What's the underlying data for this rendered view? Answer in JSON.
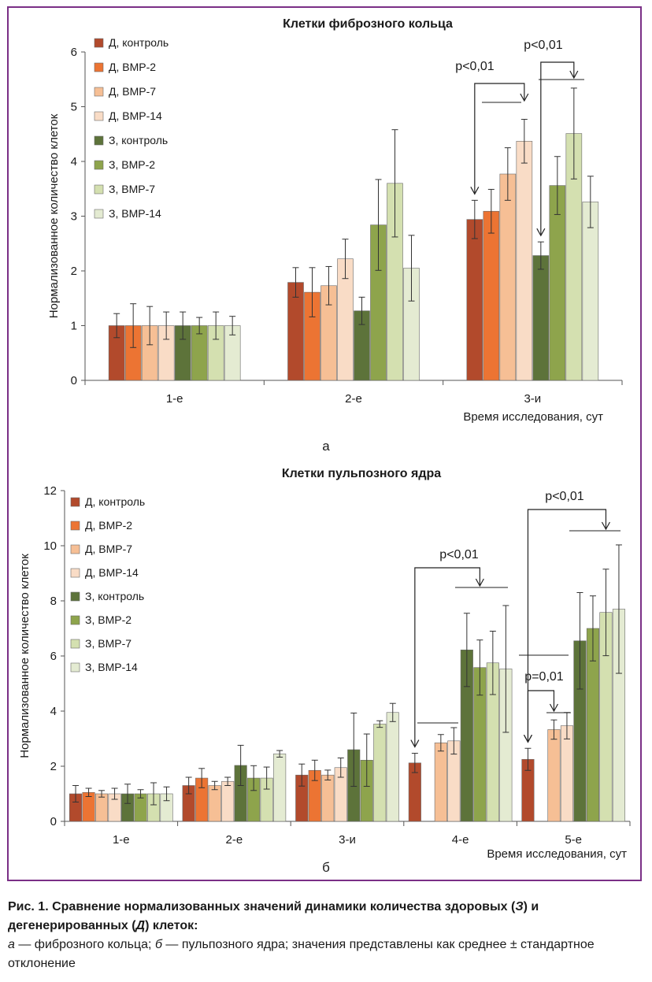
{
  "caption": {
    "title_start": "Рис. 1. Сравнение нормализованных значений динамики количества здоровых (",
    "title_z": "З",
    "title_mid": ") и дегенерированных (",
    "title_d": "Д",
    "title_end": ") клеток:",
    "a_letter": "а",
    "a_text": " — фиброзного кольца; ",
    "b_letter": "б",
    "b_text": " — пульпозного ядра; значения представлены как среднее ± стандартное отклонение"
  },
  "chart_data": [
    {
      "type": "bar",
      "panel": "а",
      "title": "Клетки фиброзного кольца",
      "ylabel": "Нормализованное количество клеток",
      "xlabel": "Время исследования, сут",
      "ylim": [
        0,
        6
      ],
      "yticks": [
        0,
        1,
        2,
        3,
        4,
        5,
        6
      ],
      "legend_position": "top-left",
      "categories": [
        "1-е",
        "2-е",
        "3-и"
      ],
      "series": [
        {
          "name": "Д, контроль",
          "color": "#b24a2c",
          "values": [
            1.0,
            1.79,
            2.94
          ],
          "errors": [
            0.22,
            0.27,
            0.35
          ]
        },
        {
          "name": "Д, BMP-2",
          "color": "#ec7433",
          "values": [
            1.0,
            1.61,
            3.09
          ],
          "errors": [
            0.4,
            0.45,
            0.4
          ]
        },
        {
          "name": "Д, BMP-7",
          "color": "#f6bf95",
          "values": [
            1.0,
            1.73,
            3.77
          ],
          "errors": [
            0.35,
            0.35,
            0.48
          ]
        },
        {
          "name": "Д, BMP-14",
          "color": "#f9dcc6",
          "values": [
            1.0,
            2.22,
            4.37
          ],
          "errors": [
            0.25,
            0.36,
            0.4
          ]
        },
        {
          "name": "З, контроль",
          "color": "#5d733a",
          "values": [
            1.0,
            1.27,
            2.28
          ],
          "errors": [
            0.25,
            0.25,
            0.25
          ]
        },
        {
          "name": "З, BMP-2",
          "color": "#8ea44c",
          "values": [
            1.0,
            2.84,
            3.56
          ],
          "errors": [
            0.15,
            0.83,
            0.53
          ]
        },
        {
          "name": "З, BMP-7",
          "color": "#d4e0b0",
          "values": [
            1.0,
            3.6,
            4.51
          ],
          "errors": [
            0.25,
            0.98,
            0.83
          ]
        },
        {
          "name": "З, BMP-14",
          "color": "#e4ebd2",
          "values": [
            1.0,
            2.05,
            3.26
          ],
          "errors": [
            0.17,
            0.6,
            0.47
          ]
        }
      ],
      "annotations": [
        {
          "text": "p<0,01",
          "category": "3-и",
          "from_series": 0,
          "to_series": 3
        },
        {
          "text": "p<0,01",
          "category": "3-и",
          "from_series": 4,
          "to_series": 6
        }
      ]
    },
    {
      "type": "bar",
      "panel": "б",
      "title": "Клетки пульпозного ядра",
      "ylabel": "Нормализованное количество клеток",
      "xlabel": "Время исследования, сут",
      "ylim": [
        0,
        12
      ],
      "yticks": [
        0,
        2,
        4,
        6,
        8,
        10,
        12
      ],
      "legend_position": "top-left",
      "categories": [
        "1-е",
        "2-е",
        "3-и",
        "4-е",
        "5-е"
      ],
      "series": [
        {
          "name": "Д, контроль",
          "color": "#b24a2c",
          "values": [
            1.0,
            1.3,
            1.68,
            2.12,
            2.25
          ],
          "errors": [
            0.3,
            0.3,
            0.4,
            0.35,
            0.4
          ]
        },
        {
          "name": "Д, BMP-2",
          "color": "#ec7433",
          "values": [
            1.05,
            1.57,
            1.85,
            null,
            null
          ],
          "errors": [
            0.15,
            0.35,
            0.37,
            null,
            null
          ]
        },
        {
          "name": "Д, BMP-7",
          "color": "#f6bf95",
          "values": [
            1.0,
            1.3,
            1.68,
            2.85,
            3.33
          ],
          "errors": [
            0.12,
            0.15,
            0.18,
            0.3,
            0.35
          ]
        },
        {
          "name": "Д, BMP-14",
          "color": "#f9dcc6",
          "values": [
            1.0,
            1.45,
            1.95,
            2.92,
            3.47
          ],
          "errors": [
            0.2,
            0.15,
            0.35,
            0.48,
            0.48
          ]
        },
        {
          "name": "З, контроль",
          "color": "#5d733a",
          "values": [
            1.0,
            2.03,
            2.6,
            6.22,
            6.55
          ],
          "errors": [
            0.35,
            0.73,
            1.33,
            1.33,
            1.75
          ]
        },
        {
          "name": "З, BMP-2",
          "color": "#8ea44c",
          "values": [
            1.0,
            1.57,
            2.22,
            5.58,
            7.0
          ],
          "errors": [
            0.15,
            0.45,
            0.95,
            1.0,
            1.18
          ]
        },
        {
          "name": "З, BMP-7",
          "color": "#d4e0b0",
          "values": [
            1.0,
            1.57,
            3.53,
            5.75,
            7.58
          ],
          "errors": [
            0.4,
            0.4,
            0.12,
            1.15,
            1.57
          ]
        },
        {
          "name": "З, BMP-14",
          "color": "#e4ebd2",
          "values": [
            1.0,
            2.45,
            3.95,
            5.53,
            7.7
          ],
          "errors": [
            0.25,
            0.12,
            0.33,
            2.3,
            2.33
          ]
        }
      ],
      "annotations": [
        {
          "text": "p<0,01",
          "category": "4-е",
          "from_series": 0,
          "to_series": 5
        },
        {
          "text": "p<0,01",
          "category": "5-е",
          "from_series": 0,
          "to_series": 6
        },
        {
          "text": "p=0,01",
          "category": "5-е",
          "from_series": 0,
          "to_series": 2
        }
      ]
    }
  ]
}
